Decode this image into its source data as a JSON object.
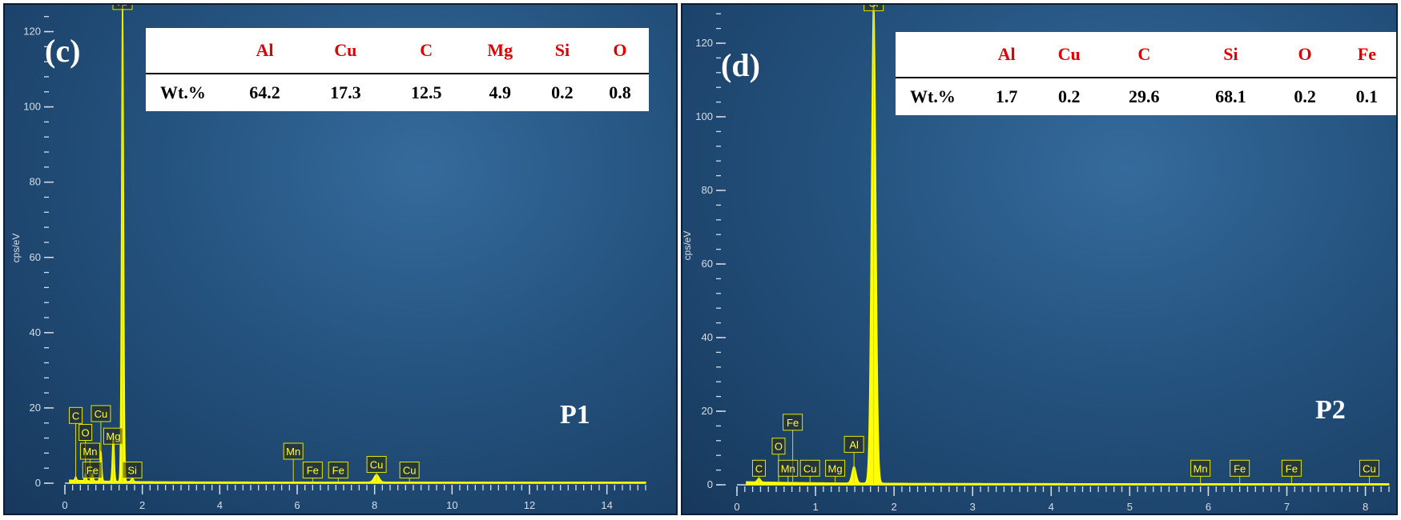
{
  "chart_data": [
    {
      "type": "line",
      "panel_label": "(c)",
      "point_label": "P1",
      "ylabel": "cps/eV",
      "xlim": [
        0,
        15
      ],
      "ylim": [
        0,
        125
      ],
      "x_ticks": [
        "0",
        "2",
        "4",
        "6",
        "8",
        "10",
        "12",
        "14"
      ],
      "y_ticks": [
        "0",
        "20",
        "40",
        "60",
        "80",
        "100",
        "120"
      ],
      "peaks": [
        {
          "element": "C",
          "x": 0.28,
          "y": 1.0
        },
        {
          "element": "O",
          "x": 0.53,
          "y": 2.0
        },
        {
          "element": "Fe",
          "x": 0.71,
          "y": 2.0
        },
        {
          "element": "Cu",
          "x": 0.93,
          "y": 8.0
        },
        {
          "element": "Mg",
          "x": 1.25,
          "y": 12.0
        },
        {
          "element": "Al",
          "x": 1.49,
          "y": 130.0
        },
        {
          "element": "Si",
          "x": 1.74,
          "y": 1.0
        },
        {
          "element": "Cu",
          "x": 8.05,
          "y": 2.0
        }
      ],
      "peak_labels": [
        {
          "text": "C",
          "x": 0.28,
          "y": 18
        },
        {
          "text": "Cu",
          "x": 0.93,
          "y": 18.5
        },
        {
          "text": "O",
          "x": 0.53,
          "y": 13.5
        },
        {
          "text": "Mg",
          "x": 1.25,
          "y": 12.5
        },
        {
          "text": "Mn",
          "x": 0.65,
          "y": 8.5
        },
        {
          "text": "Fe",
          "x": 0.71,
          "y": 3.5
        },
        {
          "text": "Si",
          "x": 1.74,
          "y": 3.5
        },
        {
          "text": "Al",
          "x": 1.49,
          "y": 128
        },
        {
          "text": "Mn",
          "x": 5.9,
          "y": 8.5
        },
        {
          "text": "Fe",
          "x": 6.4,
          "y": 3.5
        },
        {
          "text": "Fe",
          "x": 7.06,
          "y": 3.5
        },
        {
          "text": "Cu",
          "x": 8.05,
          "y": 5.0
        },
        {
          "text": "Cu",
          "x": 8.9,
          "y": 3.5
        }
      ],
      "table": {
        "headers": [
          "Al",
          "Cu",
          "C",
          "Mg",
          "Si",
          "O"
        ],
        "row_label": "Wt.%",
        "values": [
          "64.2",
          "17.3",
          "12.5",
          "4.9",
          "0.2",
          "0.8"
        ]
      }
    },
    {
      "type": "line",
      "panel_label": "(d)",
      "point_label": "P2",
      "ylabel": "cps/eV",
      "xlim": [
        0,
        8.3
      ],
      "ylim": [
        0,
        130
      ],
      "x_ticks": [
        "0",
        "1",
        "2",
        "3",
        "4",
        "5",
        "6",
        "7",
        "8"
      ],
      "y_ticks": [
        "0",
        "20",
        "40",
        "60",
        "80",
        "100",
        "120"
      ],
      "peaks": [
        {
          "element": "C",
          "x": 0.28,
          "y": 1.0
        },
        {
          "element": "Al",
          "x": 1.49,
          "y": 4.5
        },
        {
          "element": "Si",
          "x": 1.74,
          "y": 132.0
        }
      ],
      "peak_labels": [
        {
          "text": "C",
          "x": 0.28,
          "y": 4.5
        },
        {
          "text": "O",
          "x": 0.53,
          "y": 10.5
        },
        {
          "text": "Fe",
          "x": 0.71,
          "y": 17
        },
        {
          "text": "Mn",
          "x": 0.65,
          "y": 4.5
        },
        {
          "text": "Cu",
          "x": 0.93,
          "y": 4.5
        },
        {
          "text": "Mg",
          "x": 1.25,
          "y": 4.5
        },
        {
          "text": "Al",
          "x": 1.49,
          "y": 11
        },
        {
          "text": "Si",
          "x": 1.74,
          "y": 131
        },
        {
          "text": "Mn",
          "x": 5.9,
          "y": 4.5
        },
        {
          "text": "Fe",
          "x": 6.4,
          "y": 4.5
        },
        {
          "text": "Fe",
          "x": 7.06,
          "y": 4.5
        },
        {
          "text": "Cu",
          "x": 8.05,
          "y": 4.5
        }
      ],
      "table": {
        "headers": [
          "Al",
          "Cu",
          "C",
          "Si",
          "O",
          "Fe"
        ],
        "row_label": "Wt.%",
        "values": [
          "1.7",
          "0.2",
          "29.6",
          "68.1",
          "0.2",
          "0.1"
        ]
      }
    }
  ],
  "colors": {
    "spectrum": "#ffff00",
    "axis": "#d6dde6",
    "label_box": "#2a2a14",
    "header_text": "#e00000"
  }
}
